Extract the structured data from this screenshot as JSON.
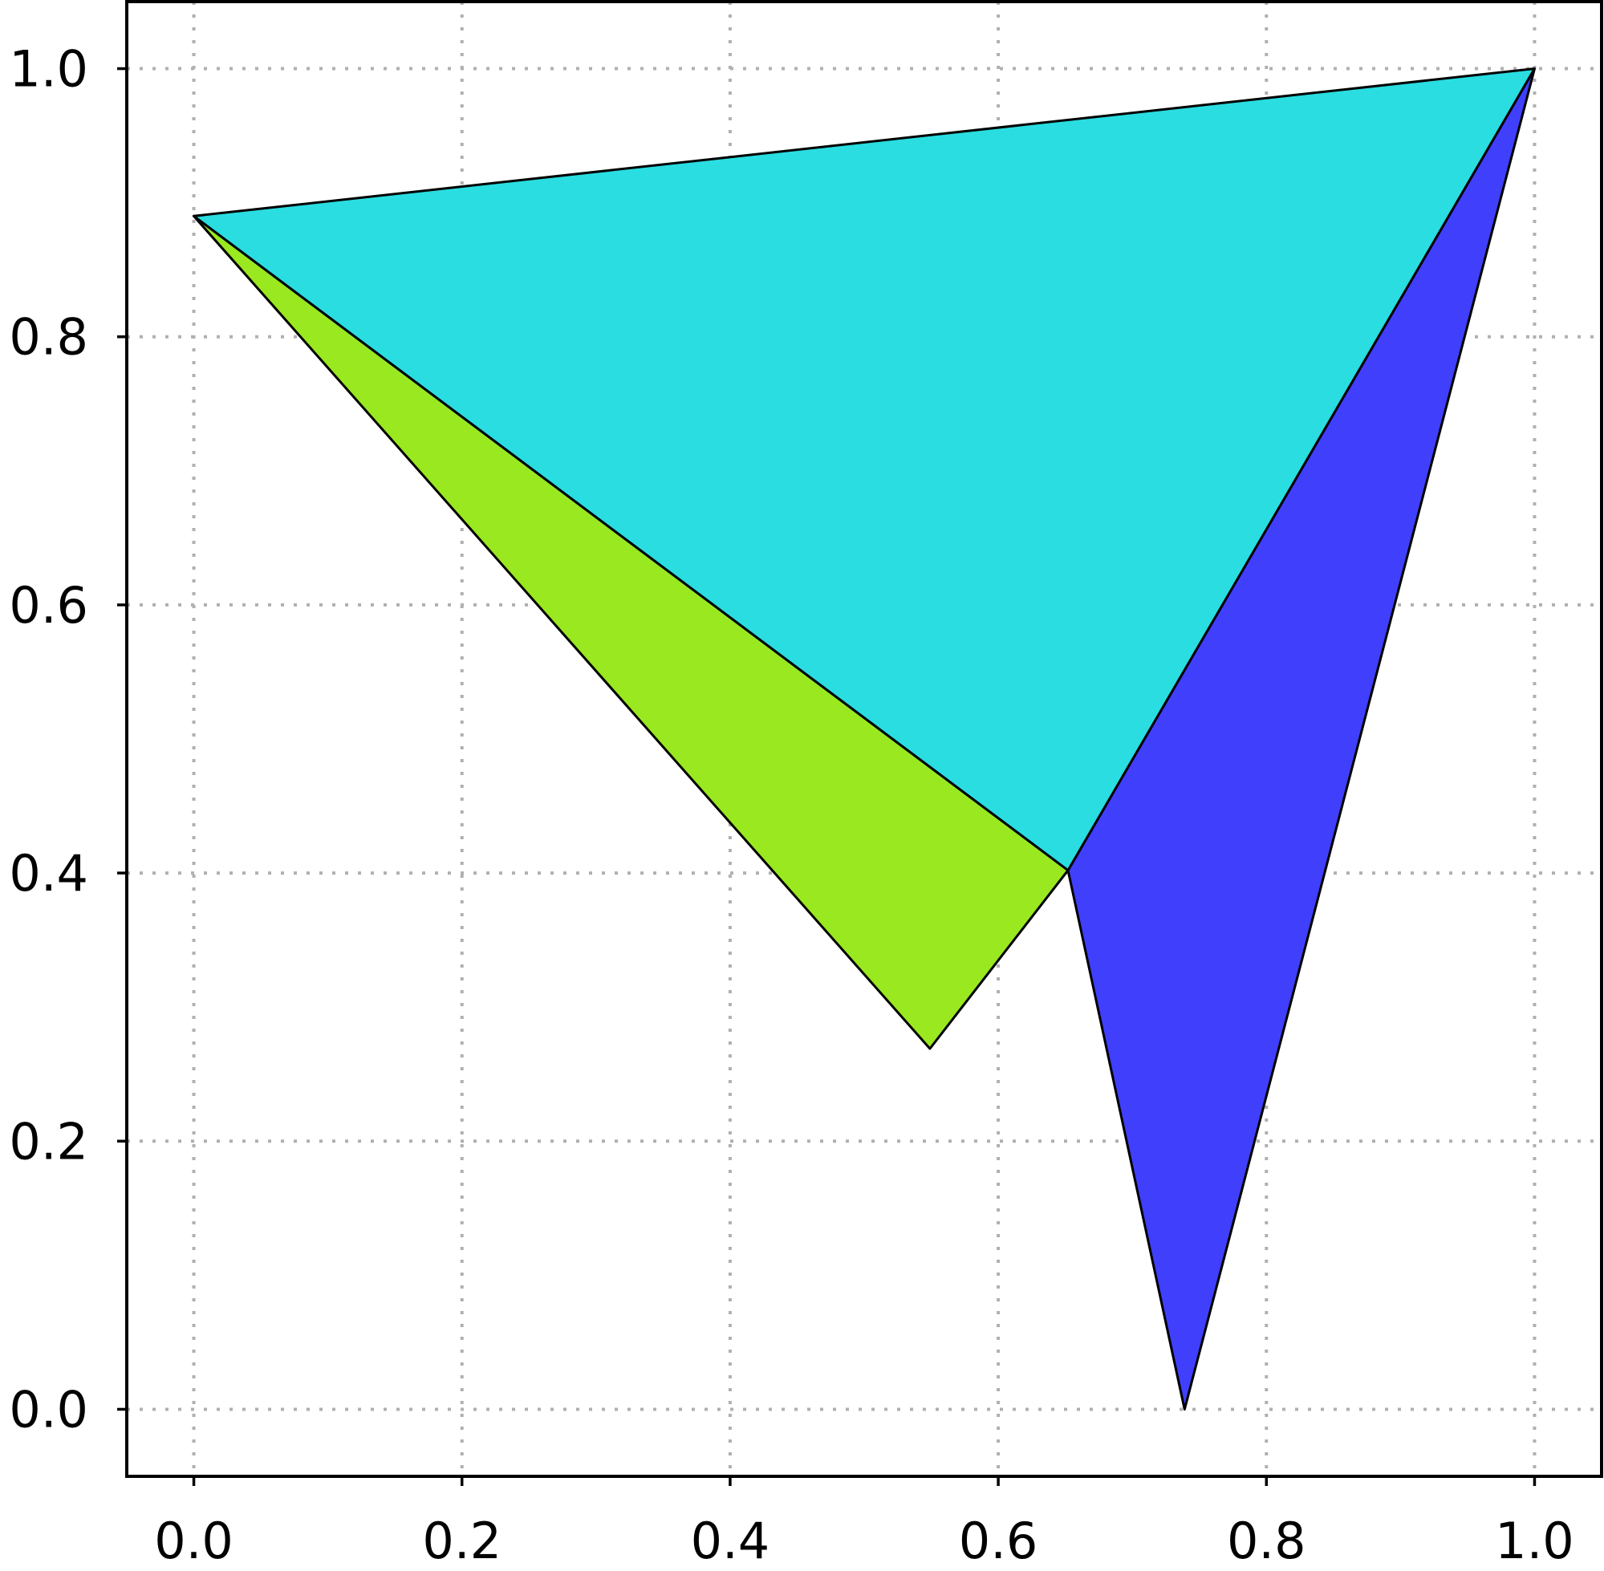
{
  "chart_data": {
    "type": "polygon",
    "title": "",
    "xlabel": "",
    "ylabel": "",
    "xlim": [
      -0.05,
      1.05
    ],
    "ylim": [
      -0.05,
      1.05
    ],
    "xticks": [
      0.0,
      0.2,
      0.4,
      0.6,
      0.8,
      1.0
    ],
    "yticks": [
      0.0,
      0.2,
      0.4,
      0.6,
      0.8,
      1.0
    ],
    "xtick_labels": [
      "0.0",
      "0.2",
      "0.4",
      "0.6",
      "0.8",
      "1.0"
    ],
    "ytick_labels": [
      "0.0",
      "0.2",
      "0.4",
      "0.6",
      "0.8",
      "1.0"
    ],
    "grid": true,
    "grid_style": "dotted",
    "legend": false,
    "polygons": [
      {
        "name": "",
        "color": "#99e820",
        "vertices": [
          [
            0.0,
            0.89
          ],
          [
            0.652,
            0.402
          ],
          [
            0.549,
            0.269
          ]
        ]
      },
      {
        "name": "",
        "color": "#403ffc",
        "vertices": [
          [
            0.652,
            0.402
          ],
          [
            1.0,
            1.0
          ],
          [
            0.739,
            0.0
          ]
        ]
      },
      {
        "name": "",
        "color": "#29dde1",
        "vertices": [
          [
            0.0,
            0.89
          ],
          [
            1.0,
            1.0
          ],
          [
            0.652,
            0.402
          ]
        ]
      }
    ]
  }
}
